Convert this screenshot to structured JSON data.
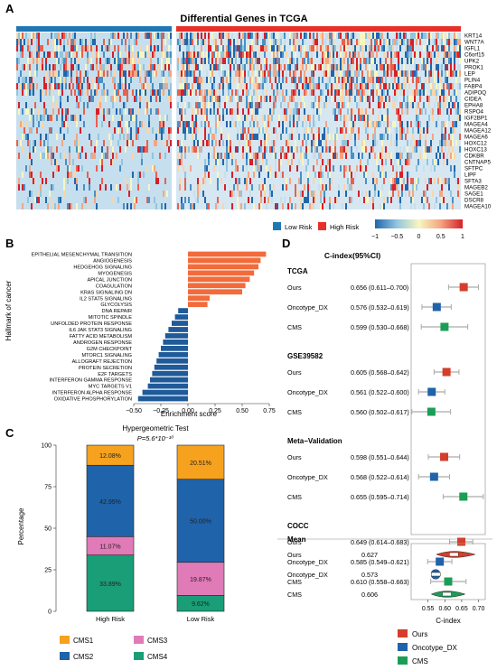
{
  "panels": {
    "A": {
      "letter": "A",
      "title": "Differential Genes in TCGA",
      "genes": [
        "KRT14",
        "WNT7A",
        "IGFL1",
        "C6orf15",
        "UPK2",
        "PROK1",
        "LEP",
        "PLIN4",
        "FABP4",
        "ADIPOQ",
        "CIDEA",
        "EPHA8",
        "RSPO4",
        "IGF2BP1",
        "MAGEA4",
        "MAGEA12",
        "MAGEA6",
        "HOXC12",
        "HOXC13",
        "CDKBR",
        "CNTNAP5",
        "SFTPC",
        "LIPF",
        "SFTA3",
        "MAGEB2",
        "SAGE1",
        "DSCR8",
        "MAGEA10"
      ],
      "group_legend": [
        {
          "label": "Low Risk",
          "color": "#1f77b4"
        },
        {
          "label": "High Risk",
          "color": "#e8302a"
        }
      ],
      "colorbar_ticks": [
        "−1",
        "−0.5",
        "0",
        "0.5",
        "1"
      ]
    },
    "B": {
      "letter": "B",
      "chart_data": {
        "type": "bar",
        "orientation": "horizontal",
        "ylabel": "Hallmark of cancer",
        "xlabel": "Enrichment score",
        "xlim": [
          -0.5,
          0.75
        ],
        "xticks": [
          "−0.50",
          "−0.25",
          "0.00",
          "0.25",
          "0.50",
          "0.75"
        ],
        "positive_color": "#f26b3a",
        "negative_color": "#1f5a99",
        "categories": [
          "EPITHELIAL MESENCHYMAL TRANSITION",
          "ANGIOGENESIS",
          "HEDGEHOG SIGNALING",
          "MYOGENESIS",
          "APICAL JUNCTION",
          "COAGULATION",
          "KRAS SIGNALING DN",
          "IL2 STAT5 SIGNALING",
          "GLYCOLYSIS",
          "DNA REPAIR",
          "MITOTIC SPINDLE",
          "UNFOLDED PROTEIN RESPONSE",
          "IL6 JAK STAT3 SIGNALING",
          "FATTY ACID METABOLISM",
          "ANDROGEN RESPONSE",
          "G2M CHECKPOINT",
          "MTORC1 SIGNALING",
          "ALLOGRAFT REJECTION",
          "PROTEIN SECRETION",
          "E2F TARGETS",
          "INTERFERON GAMMA RESPONSE",
          "MYC TARGETS V1",
          "INTERFERON ALPHA RESPONSE",
          "OXIDATIVE PHOSPHORYLATION"
        ],
        "values": [
          0.72,
          0.67,
          0.65,
          0.61,
          0.57,
          0.53,
          0.5,
          0.2,
          0.18,
          -0.09,
          -0.12,
          -0.15,
          -0.18,
          -0.21,
          -0.23,
          -0.25,
          -0.27,
          -0.29,
          -0.31,
          -0.33,
          -0.35,
          -0.37,
          -0.42,
          -0.46
        ]
      }
    },
    "C": {
      "letter": "C",
      "chart_data": {
        "type": "bar",
        "stacked": true,
        "title": "Hypergeometric Test",
        "subtitle": "P=5.6*10⁻¹⁰",
        "ylabel": "Percentage",
        "ylim": [
          0,
          100
        ],
        "yticks": [
          "0",
          "25",
          "50",
          "75",
          "100"
        ],
        "categories": [
          "High Risk",
          "Low Risk"
        ],
        "series": [
          {
            "name": "CMS4",
            "color": "#1a9e77",
            "values": [
              33.89,
              9.62
            ],
            "labels": [
              "33.89%",
              "9.62%"
            ]
          },
          {
            "name": "CMS3",
            "color": "#e07bb8",
            "values": [
              11.07,
              19.87
            ],
            "labels": [
              "11.07%",
              "19.87%"
            ]
          },
          {
            "name": "CMS2",
            "color": "#1f63aa",
            "values": [
              42.95,
              50.0
            ],
            "labels": [
              "42.95%",
              "50.00%"
            ]
          },
          {
            "name": "CMS1",
            "color": "#f6a21e",
            "values": [
              12.08,
              20.51
            ],
            "labels": [
              "12.08%",
              "20.51%"
            ]
          }
        ],
        "legend": [
          "CMS1",
          "CMS3",
          "CMS2",
          "CMS4"
        ]
      }
    },
    "D": {
      "letter": "D",
      "chart_data": {
        "type": "scatter",
        "title": "C-index(95%CI)",
        "xlabel": "C-index",
        "xlim": [
          0.5,
          0.72
        ],
        "xticks": [
          "0.55",
          "0.60",
          "0.65",
          "0.70"
        ],
        "colors": {
          "Ours": "#d43e2a",
          "Oncotype_DX": "#1f63aa",
          "CMS": "#1a9e55"
        },
        "groups": [
          {
            "name": "TCGA",
            "rows": [
              {
                "model": "Ours",
                "label": "0.656 (0.611–0.700)",
                "est": 0.656,
                "lo": 0.611,
                "hi": 0.7
              },
              {
                "model": "Oncotype_DX",
                "label": "0.576 (0.532–0.619)",
                "est": 0.576,
                "lo": 0.532,
                "hi": 0.619
              },
              {
                "model": "CMS",
                "label": "0.599 (0.530–0.668)",
                "est": 0.599,
                "lo": 0.53,
                "hi": 0.668
              }
            ]
          },
          {
            "name": "GSE39582",
            "rows": [
              {
                "model": "Ours",
                "label": "0.605 (0.568–0.642)",
                "est": 0.605,
                "lo": 0.568,
                "hi": 0.642
              },
              {
                "model": "Oncotype_DX",
                "label": "0.561 (0.522–0.600)",
                "est": 0.561,
                "lo": 0.522,
                "hi": 0.6
              },
              {
                "model": "CMS",
                "label": "0.560 (0.502–0.617)",
                "est": 0.56,
                "lo": 0.502,
                "hi": 0.617
              }
            ]
          },
          {
            "name": "Meta−Validation",
            "rows": [
              {
                "model": "Ours",
                "label": "0.598 (0.551–0.644)",
                "est": 0.598,
                "lo": 0.551,
                "hi": 0.644
              },
              {
                "model": "Oncotype_DX",
                "label": "0.568 (0.522–0.614)",
                "est": 0.568,
                "lo": 0.522,
                "hi": 0.614
              },
              {
                "model": "CMS",
                "label": "0.655 (0.595–0.714)",
                "est": 0.655,
                "lo": 0.595,
                "hi": 0.714
              }
            ]
          },
          {
            "name": "COCC",
            "rows": [
              {
                "model": "Ours",
                "label": "0.649 (0.614–0.683)",
                "est": 0.649,
                "lo": 0.614,
                "hi": 0.683
              },
              {
                "model": "Oncotype_DX",
                "label": "0.585 (0.549–0.621)",
                "est": 0.585,
                "lo": 0.549,
                "hi": 0.621
              },
              {
                "model": "CMS",
                "label": "0.610 (0.558–0.663)",
                "est": 0.61,
                "lo": 0.558,
                "hi": 0.663
              }
            ]
          }
        ],
        "mean": {
          "name": "Mean",
          "rows": [
            {
              "model": "Ours",
              "label": "0.627",
              "est": 0.627,
              "lo": 0.575,
              "hi": 0.69
            },
            {
              "model": "Oncotype_DX",
              "label": "0.573",
              "est": 0.573,
              "lo": 0.56,
              "hi": 0.585
            },
            {
              "model": "CMS",
              "label": "0.606",
              "est": 0.606,
              "lo": 0.56,
              "hi": 0.66
            }
          ]
        },
        "legend": [
          "Ours",
          "Oncotype_DX",
          "CMS"
        ]
      }
    }
  }
}
